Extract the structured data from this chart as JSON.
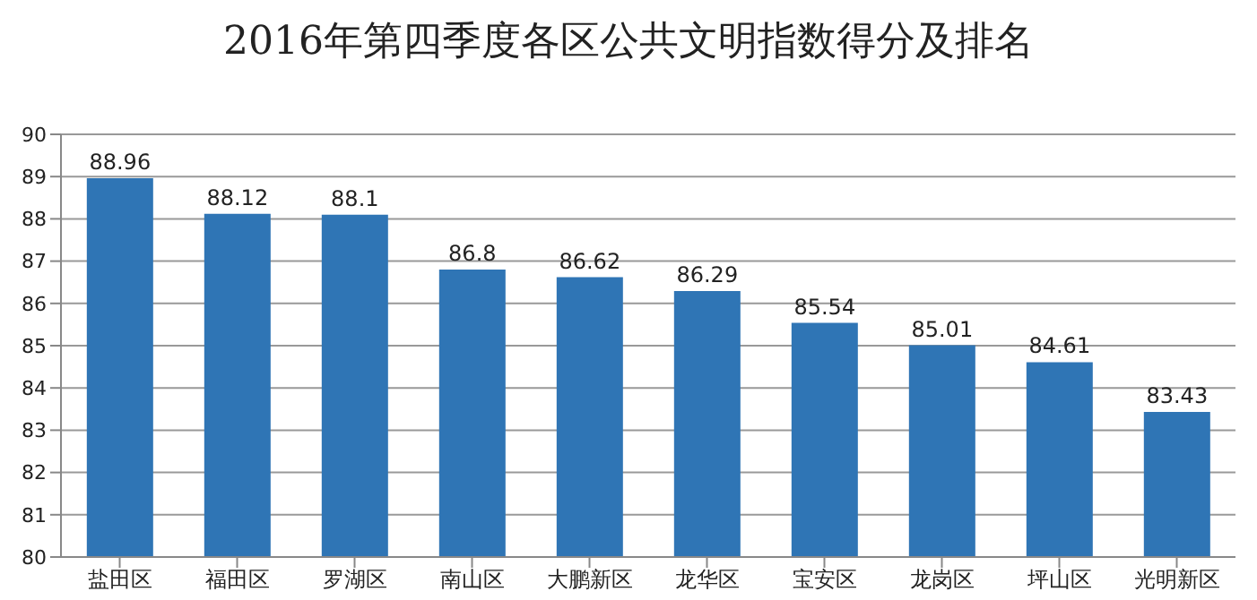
{
  "chart_data": {
    "type": "bar",
    "title": "2016年第四季度各区公共文明指数得分及排名",
    "categories": [
      "盐田区",
      "福田区",
      "罗湖区",
      "南山区",
      "大鹏新区",
      "龙华区",
      "宝安区",
      "龙岗区",
      "坪山区",
      "光明新区"
    ],
    "values": [
      88.96,
      88.12,
      88.1,
      86.8,
      86.62,
      86.29,
      85.54,
      85.01,
      84.61,
      83.43
    ],
    "color": "#2f75b5",
    "ylim": [
      80,
      90
    ],
    "yticks": [
      80,
      81,
      82,
      83,
      84,
      85,
      86,
      87,
      88,
      89,
      90
    ],
    "grid": "y",
    "data_labels": true,
    "legend": false
  }
}
